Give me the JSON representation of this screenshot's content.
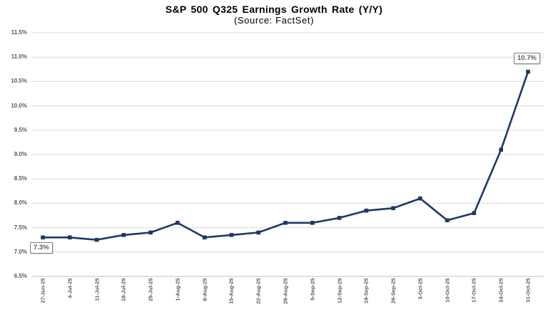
{
  "title": "S&P 500 Q325 Earnings Growth Rate (Y/Y)",
  "subtitle": "(Source: FactSet)",
  "chart_data": {
    "type": "line",
    "categories": [
      "27-Jun-25",
      "4-Jul-25",
      "11-Jul-25",
      "18-Jul-25",
      "25-Jul-25",
      "1-Aug-25",
      "8-Aug-25",
      "15-Aug-25",
      "22-Aug-25",
      "29-Aug-25",
      "5-Sep-25",
      "12-Sep-25",
      "19-Sep-25",
      "26-Sep-25",
      "3-Oct-25",
      "10-Oct-25",
      "17-Oct-25",
      "24-Oct-25",
      "31-Oct-25"
    ],
    "values": [
      7.3,
      7.3,
      7.25,
      7.35,
      7.4,
      7.6,
      7.3,
      7.35,
      7.4,
      7.6,
      7.6,
      7.7,
      7.85,
      7.9,
      8.1,
      7.65,
      7.8,
      9.1,
      10.7
    ],
    "ylim": [
      6.5,
      11.5
    ],
    "ytick_step": 0.5,
    "ytick_labels": [
      "11.5%",
      "11.0%",
      "10.5%",
      "10.0%",
      "9.5%",
      "9.0%",
      "8.5%",
      "8.0%",
      "7.5%",
      "7.0%",
      "6.5%"
    ],
    "grid": "horizontal",
    "legend": "none",
    "line_color": "#1f3864",
    "marker": "square",
    "gridline_color": "#d9d9d9",
    "axisline_color": "#c0c0c0",
    "callouts": [
      {
        "index": 0,
        "text": "7.3%"
      },
      {
        "index": 18,
        "text": "10.7%"
      }
    ]
  }
}
